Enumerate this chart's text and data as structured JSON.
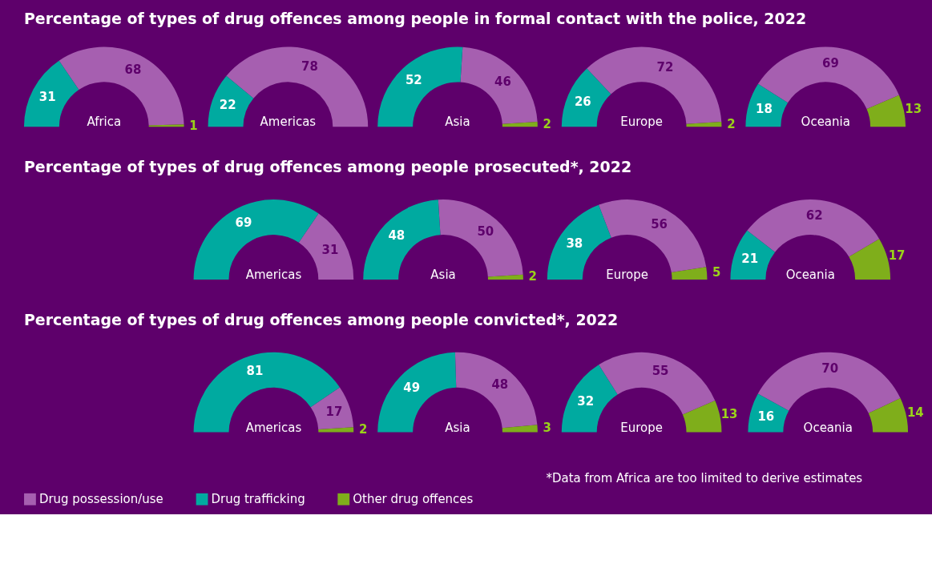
{
  "chart_data": [
    {
      "type": "donut",
      "title": "Percentage of types of drug offences among people in formal contact with the police, 2022",
      "xlabel": "Africa",
      "categories": [
        "Drug possession/use",
        "Drug trafficking",
        "Other drug offences"
      ],
      "values": [
        68,
        31,
        1
      ],
      "colors": [
        "#a65fb0",
        "#00aaa0",
        "#7fae1b"
      ],
      "data_labels": true,
      "legend": "bottom"
    },
    {
      "type": "donut",
      "xlabel": "Americas",
      "categories": [
        null,
        null,
        null
      ],
      "values": [
        78,
        22,
        null
      ],
      "colors": [
        "#a65fb0",
        "#00aaa0",
        "#7fae1b"
      ],
      "data_labels": true
    },
    {
      "type": "donut",
      "xlabel": "Asia",
      "categories": [
        null,
        null,
        null
      ],
      "values": [
        46,
        52,
        2
      ],
      "colors": [
        "#a65fb0",
        "#00aaa0",
        "#7fae1b"
      ],
      "data_labels": true
    },
    {
      "type": "donut",
      "xlabel": "Europe",
      "categories": [
        null,
        null,
        null
      ],
      "values": [
        72,
        26,
        2
      ],
      "colors": [
        "#a65fb0",
        "#00aaa0",
        "#7fae1b"
      ],
      "data_labels": true
    },
    {
      "type": "donut",
      "xlabel": "Oceania",
      "categories": [
        null,
        null,
        null
      ],
      "values": [
        69,
        18,
        13
      ],
      "colors": [
        "#a65fb0",
        "#00aaa0",
        "#7fae1b"
      ],
      "data_labels": true
    },
    {
      "type": "donut",
      "title": "Percentage of types of drug offences among people prosecuted*, 2022",
      "xlabel": "Americas",
      "categories": [
        null,
        null,
        null
      ],
      "values": [
        31,
        69,
        null
      ],
      "colors": [
        "#a65fb0",
        "#00aaa0",
        "#7fae1b"
      ],
      "data_labels": true
    },
    {
      "type": "donut",
      "xlabel": "Asia",
      "categories": [
        null,
        null,
        null
      ],
      "values": [
        50,
        48,
        2
      ],
      "colors": [
        "#a65fb0",
        "#00aaa0",
        "#7fae1b"
      ],
      "data_labels": true
    },
    {
      "type": "donut",
      "xlabel": "Europe",
      "categories": [
        null,
        null,
        null
      ],
      "values": [
        56,
        38,
        5
      ],
      "colors": [
        "#a65fb0",
        "#00aaa0",
        "#7fae1b"
      ],
      "data_labels": true
    },
    {
      "type": "donut",
      "xlabel": "Oceania",
      "categories": [
        null,
        null,
        null
      ],
      "values": [
        62,
        21,
        17
      ],
      "colors": [
        "#a65fb0",
        "#00aaa0",
        "#7fae1b"
      ],
      "data_labels": true
    },
    {
      "type": "donut",
      "title": "Percentage of types of drug offences among people convicted*, 2022",
      "xlabel": "Americas",
      "categories": [
        null,
        null,
        null
      ],
      "values": [
        17,
        81,
        2
      ],
      "colors": [
        "#a65fb0",
        "#00aaa0",
        "#7fae1b"
      ],
      "data_labels": true
    },
    {
      "type": "donut",
      "xlabel": "Asia",
      "categories": [
        null,
        null,
        null
      ],
      "values": [
        48,
        49,
        3
      ],
      "colors": [
        "#a65fb0",
        "#00aaa0",
        "#7fae1b"
      ],
      "data_labels": true
    },
    {
      "type": "donut",
      "xlabel": "Europe",
      "categories": [
        null,
        null,
        null
      ],
      "values": [
        55,
        32,
        13
      ],
      "colors": [
        "#a65fb0",
        "#00aaa0",
        "#7fae1b"
      ],
      "data_labels": true
    },
    {
      "type": "donut",
      "xlabel": "Oceania",
      "categories": [
        null,
        null,
        null
      ],
      "values": [
        70,
        16,
        14
      ],
      "colors": [
        "#a65fb0",
        "#00aaa0",
        "#7fae1b"
      ],
      "data_labels": true,
      "annotations": [
        "*Data from Africa are too limited to derive estimates"
      ]
    }
  ]
}
